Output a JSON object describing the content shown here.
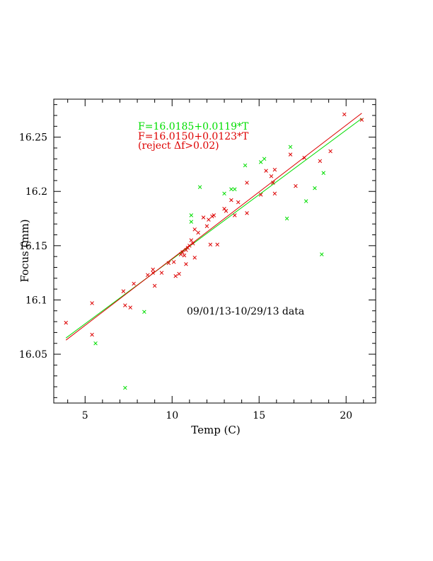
{
  "chart_data": {
    "type": "scatter",
    "xlabel": "Temp (C)",
    "ylabel": "Focus (mm)",
    "xlim": [
      3.2,
      21.7
    ],
    "ylim": [
      16.005,
      16.285
    ],
    "xticks": [
      5,
      10,
      15,
      20
    ],
    "yticks": [
      16.05,
      16.1,
      16.15,
      16.2,
      16.25
    ],
    "ytick_labels": [
      "16.05",
      "16.1",
      "16.15",
      "16.2",
      "16.25"
    ],
    "grid": false,
    "annotations": {
      "fit_all": "F=16.0185+0.0119*T",
      "fit_reject": "F=16.0150+0.0123*T",
      "reject_note": "(reject Δf>0.02)",
      "date_range": "09/01/13-10/29/13 data"
    },
    "series": [
      {
        "color": "#00dd00",
        "marker": "x",
        "fit": {
          "intercept": 16.0185,
          "slope": 0.0119,
          "x_range": [
            3.9,
            20.9
          ]
        },
        "points": [
          [
            5.6,
            16.06
          ],
          [
            7.3,
            16.019
          ],
          [
            8.4,
            16.089
          ],
          [
            11.1,
            16.178
          ],
          [
            11.1,
            16.172
          ],
          [
            11.6,
            16.204
          ],
          [
            13.0,
            16.198
          ],
          [
            13.4,
            16.202
          ],
          [
            13.6,
            16.202
          ],
          [
            14.2,
            16.224
          ],
          [
            15.1,
            16.227
          ],
          [
            15.3,
            16.23
          ],
          [
            15.8,
            16.208
          ],
          [
            16.6,
            16.175
          ],
          [
            16.8,
            16.241
          ],
          [
            17.7,
            16.191
          ],
          [
            18.2,
            16.203
          ],
          [
            18.6,
            16.142
          ],
          [
            18.7,
            16.217
          ]
        ]
      },
      {
        "color": "#dd0000",
        "marker": "x",
        "fit": {
          "intercept": 16.015,
          "slope": 0.0123,
          "x_range": [
            3.9,
            20.9
          ]
        },
        "points": [
          [
            3.9,
            16.079
          ],
          [
            5.4,
            16.097
          ],
          [
            5.4,
            16.068
          ],
          [
            7.2,
            16.108
          ],
          [
            7.3,
            16.095
          ],
          [
            7.6,
            16.093
          ],
          [
            7.8,
            16.115
          ],
          [
            8.6,
            16.123
          ],
          [
            8.9,
            16.128
          ],
          [
            8.9,
            16.125
          ],
          [
            9.0,
            16.113
          ],
          [
            9.4,
            16.125
          ],
          [
            9.8,
            16.134
          ],
          [
            10.1,
            16.135
          ],
          [
            10.2,
            16.122
          ],
          [
            10.4,
            16.124
          ],
          [
            10.5,
            16.142
          ],
          [
            10.6,
            16.144
          ],
          [
            10.7,
            16.141
          ],
          [
            10.8,
            16.133
          ],
          [
            10.8,
            16.146
          ],
          [
            10.9,
            16.148
          ],
          [
            11.0,
            16.15
          ],
          [
            11.1,
            16.155
          ],
          [
            11.2,
            16.152
          ],
          [
            11.3,
            16.165
          ],
          [
            11.3,
            16.139
          ],
          [
            11.5,
            16.162
          ],
          [
            11.8,
            16.176
          ],
          [
            12.0,
            16.168
          ],
          [
            12.1,
            16.174
          ],
          [
            12.2,
            16.151
          ],
          [
            12.3,
            16.177
          ],
          [
            12.4,
            16.178
          ],
          [
            12.6,
            16.151
          ],
          [
            13.0,
            16.184
          ],
          [
            13.1,
            16.182
          ],
          [
            13.4,
            16.192
          ],
          [
            13.6,
            16.178
          ],
          [
            13.8,
            16.19
          ],
          [
            14.3,
            16.18
          ],
          [
            14.3,
            16.208
          ],
          [
            15.1,
            16.197
          ],
          [
            15.4,
            16.219
          ],
          [
            15.7,
            16.214
          ],
          [
            15.8,
            16.208
          ],
          [
            15.9,
            16.22
          ],
          [
            15.9,
            16.198
          ],
          [
            16.8,
            16.234
          ],
          [
            17.1,
            16.205
          ],
          [
            17.6,
            16.231
          ],
          [
            18.5,
            16.228
          ],
          [
            19.1,
            16.237
          ],
          [
            19.9,
            16.271
          ],
          [
            20.9,
            16.266
          ]
        ]
      }
    ]
  }
}
